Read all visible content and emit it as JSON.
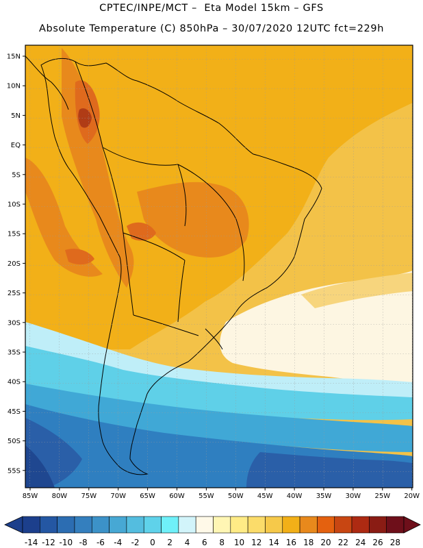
{
  "header": {
    "line1": "CPTEC/INPE/MCT –  Eta Model 15km – GFS",
    "line2": "Absolute Temperature (C) 850hPa – 30/07/2020 12UTC fct=229h"
  },
  "axes": {
    "latitude_labels": [
      "15N",
      "10N",
      "5N",
      "EQ",
      "5S",
      "10S",
      "15S",
      "20S",
      "25S",
      "30S",
      "35S",
      "40S",
      "45S",
      "50S",
      "55S"
    ],
    "longitude_labels": [
      "85W",
      "80W",
      "75W",
      "70W",
      "65W",
      "60W",
      "55W",
      "50W",
      "45W",
      "40W",
      "35W",
      "30W",
      "25W",
      "20W"
    ]
  },
  "colorbar": {
    "labels": [
      "-14",
      "-12",
      "-10",
      "-8",
      "-6",
      "-4",
      "-2",
      "0",
      "2",
      "4",
      "6",
      "8",
      "10",
      "12",
      "14",
      "16",
      "18",
      "20",
      "22",
      "24",
      "26",
      "28"
    ],
    "colors": [
      "#1c3f8c",
      "#2457a3",
      "#2c6db2",
      "#347fbe",
      "#3c92c8",
      "#47a8d4",
      "#54bddf",
      "#5fd2ea",
      "#6ff0f9",
      "#d2f4fa",
      "#fff9e8",
      "#fff6b4",
      "#ffeb86",
      "#fbdc6a",
      "#f6c94a",
      "#f2b018",
      "#e8891c",
      "#e4610f",
      "#c84612",
      "#ad2a12",
      "#8a1c14",
      "#6e0f1a"
    ]
  },
  "map_colors": {
    "ocean_pale": "#fdf6e2",
    "yellow": "#f7d57d",
    "gold": "#f3c248",
    "amber": "#f2b018",
    "orange": "#e8891c",
    "red_orange": "#df6a1d",
    "brown_red": "#b03c16",
    "cyan_light": "#bfeef8",
    "cyan": "#5fd0e8",
    "sky_blue": "#40a8d6",
    "blue": "#2f7fc0",
    "dark_blue": "#2a5fa8",
    "navy": "#1f4790",
    "border_line": "#000000"
  }
}
